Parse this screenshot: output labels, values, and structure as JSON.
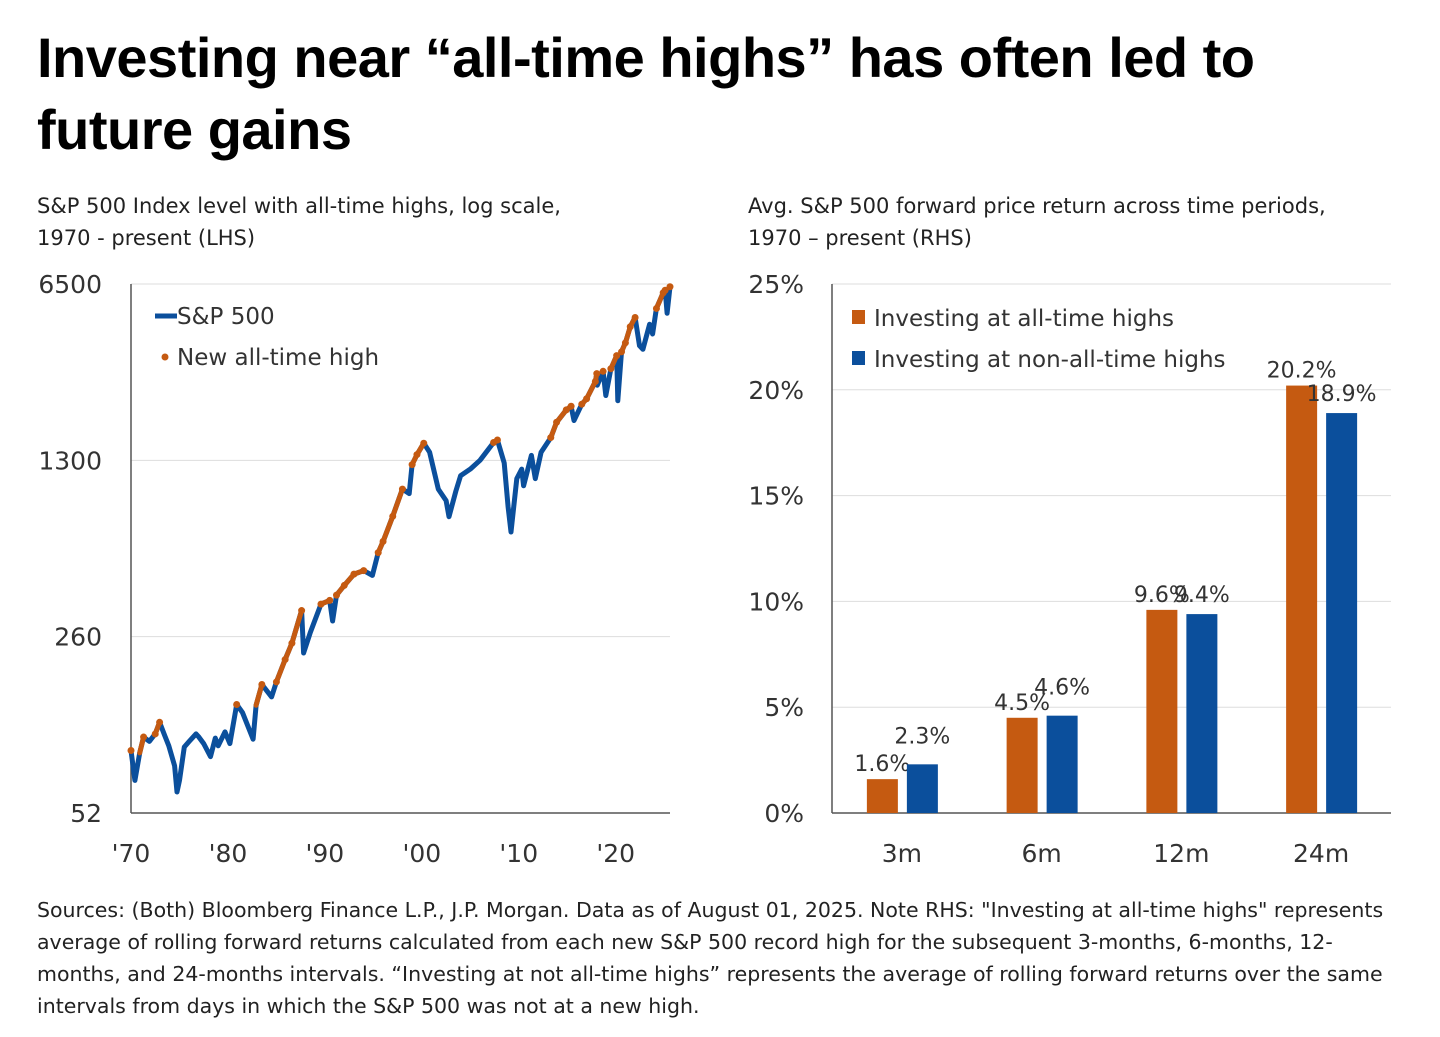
{
  "title": "Investing near “all-time highs” has often led to future gains",
  "left_subtitle": [
    "S&P 500 Index level with all-time highs, log scale,",
    "1970 - present (LHS)"
  ],
  "right_subtitle": [
    "Avg. S&P 500 forward price return across time periods,",
    "1970 – present (RHS)"
  ],
  "footnote": "Sources: (Both) Bloomberg Finance L.P., J.P. Morgan. Data as of August 01, 2025. Note RHS: \"Investing at all-time highs\" represents average of rolling forward returns calculated from each new S&P 500 record high for the subsequent 3-months, 6-months, 12-months, and 24-months intervals. “Investing at not all-time highs” represents the average of rolling forward returns over the same intervals from days in which the S&P 500 was not at a new high.",
  "colors": {
    "blue": "#0b4f9c",
    "orange": "#c55a11",
    "grid": "#dddddd"
  },
  "chart_data": [
    {
      "type": "line",
      "scale": "log",
      "ylim": [
        52,
        6500
      ],
      "xlim": [
        1970,
        2025.6
      ],
      "yticks": [
        "6500",
        "1300",
        "260",
        "52"
      ],
      "ytick_values": [
        6500,
        1300,
        260,
        52
      ],
      "xticks": [
        "'70",
        "'80",
        "'90",
        "'00",
        "'10",
        "'20"
      ],
      "xtick_values": [
        1970,
        1980,
        1990,
        2000,
        2010,
        2020
      ],
      "legend": {
        "line": "S&P 500",
        "dots": "New all-time high",
        "placement": "top-left"
      },
      "series": [
        [
          1970.0,
          92
        ],
        [
          1970.4,
          70
        ],
        [
          1970.9,
          90
        ],
        [
          1971.3,
          104
        ],
        [
          1971.9,
          100
        ],
        [
          1972.5,
          107
        ],
        [
          1972.95,
          119
        ],
        [
          1973.5,
          105
        ],
        [
          1973.9,
          96
        ],
        [
          1974.5,
          80
        ],
        [
          1974.75,
          63
        ],
        [
          1975.0,
          70
        ],
        [
          1975.5,
          95
        ],
        [
          1976.0,
          100
        ],
        [
          1976.7,
          107
        ],
        [
          1977.0,
          104
        ],
        [
          1977.5,
          98
        ],
        [
          1978.2,
          87
        ],
        [
          1978.7,
          103
        ],
        [
          1979.0,
          96
        ],
        [
          1979.7,
          109
        ],
        [
          1980.2,
          98
        ],
        [
          1980.9,
          140
        ],
        [
          1981.5,
          130
        ],
        [
          1982.6,
          102
        ],
        [
          1982.9,
          139
        ],
        [
          1983.5,
          168
        ],
        [
          1984.5,
          150
        ],
        [
          1985.0,
          172
        ],
        [
          1985.9,
          211
        ],
        [
          1986.6,
          245
        ],
        [
          1987.6,
          330
        ],
        [
          1987.8,
          224
        ],
        [
          1988.5,
          270
        ],
        [
          1989.6,
          350
        ],
        [
          1990.5,
          362
        ],
        [
          1990.8,
          300
        ],
        [
          1991.2,
          380
        ],
        [
          1992,
          415
        ],
        [
          1993,
          460
        ],
        [
          1994,
          475
        ],
        [
          1994.9,
          455
        ],
        [
          1995.5,
          560
        ],
        [
          1996,
          620
        ],
        [
          1997,
          780
        ],
        [
          1998,
          1000
        ],
        [
          1998.7,
          960
        ],
        [
          1999,
          1250
        ],
        [
          1999.5,
          1370
        ],
        [
          2000.2,
          1520
        ],
        [
          2000.8,
          1400
        ],
        [
          2001.7,
          1000
        ],
        [
          2002.5,
          900
        ],
        [
          2002.8,
          777
        ],
        [
          2003.5,
          980
        ],
        [
          2004,
          1130
        ],
        [
          2005,
          1200
        ],
        [
          2006,
          1300
        ],
        [
          2007.4,
          1530
        ],
        [
          2007.8,
          1565
        ],
        [
          2008.5,
          1270
        ],
        [
          2008.9,
          850
        ],
        [
          2009.2,
          676
        ],
        [
          2009.8,
          1100
        ],
        [
          2010.3,
          1200
        ],
        [
          2010.5,
          1030
        ],
        [
          2011.3,
          1360
        ],
        [
          2011.7,
          1100
        ],
        [
          2012.3,
          1400
        ],
        [
          2013.3,
          1600
        ],
        [
          2013.9,
          1840
        ],
        [
          2014.9,
          2060
        ],
        [
          2015.4,
          2130
        ],
        [
          2015.7,
          1870
        ],
        [
          2016.5,
          2170
        ],
        [
          2017,
          2280
        ],
        [
          2017.9,
          2670
        ],
        [
          2018.05,
          2870
        ],
        [
          2018.1,
          2580
        ],
        [
          2018.7,
          2930
        ],
        [
          2018.98,
          2350
        ],
        [
          2019.5,
          3000
        ],
        [
          2020.1,
          3380
        ],
        [
          2020.22,
          2240
        ],
        [
          2020.6,
          3500
        ],
        [
          2021,
          3800
        ],
        [
          2021.5,
          4400
        ],
        [
          2022.0,
          4790
        ],
        [
          2022.45,
          3700
        ],
        [
          2022.8,
          3580
        ],
        [
          2023.5,
          4500
        ],
        [
          2023.8,
          4120
        ],
        [
          2024.2,
          5200
        ],
        [
          2024.9,
          6000
        ],
        [
          2025.1,
          6140
        ],
        [
          2025.3,
          4980
        ],
        [
          2025.6,
          6340
        ]
      ]
    },
    {
      "type": "bar",
      "categories": [
        "3m",
        "6m",
        "12m",
        "24m"
      ],
      "ylim": [
        0,
        25
      ],
      "yticks": [
        "0%",
        "5%",
        "10%",
        "15%",
        "20%",
        "25%"
      ],
      "ytick_values": [
        0,
        5,
        10,
        15,
        20,
        25
      ],
      "legend_placement": "top-left",
      "series": [
        {
          "name": "Investing at all-time highs",
          "values": [
            1.6,
            4.5,
            9.6,
            20.2
          ],
          "labels": [
            "1.6%",
            "4.5%",
            "9.6%",
            "20.2%"
          ]
        },
        {
          "name": "Investing at non-all-time highs",
          "values": [
            2.3,
            4.6,
            9.4,
            18.9
          ],
          "labels": [
            "2.3%",
            "4.6%",
            "9.4%",
            "18.9%"
          ]
        }
      ]
    }
  ]
}
